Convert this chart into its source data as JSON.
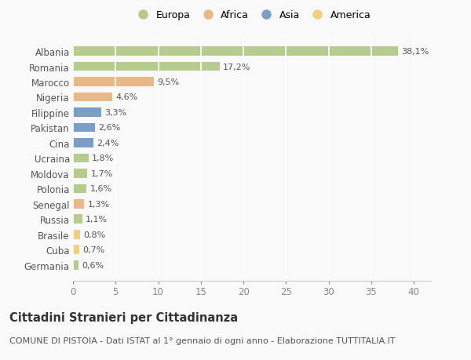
{
  "countries": [
    "Albania",
    "Romania",
    "Marocco",
    "Nigeria",
    "Filippine",
    "Pakistan",
    "Cina",
    "Ucraina",
    "Moldova",
    "Polonia",
    "Senegal",
    "Russia",
    "Brasile",
    "Cuba",
    "Germania"
  ],
  "values": [
    38.1,
    17.2,
    9.5,
    4.6,
    3.3,
    2.6,
    2.4,
    1.8,
    1.7,
    1.6,
    1.3,
    1.1,
    0.8,
    0.7,
    0.6
  ],
  "labels": [
    "38,1%",
    "17,2%",
    "9,5%",
    "4,6%",
    "3,3%",
    "2,6%",
    "2,4%",
    "1,8%",
    "1,7%",
    "1,6%",
    "1,3%",
    "1,1%",
    "0,8%",
    "0,7%",
    "0,6%"
  ],
  "colors": [
    "#b5cc8e",
    "#b5cc8e",
    "#e8b88a",
    "#e8b88a",
    "#7b9ec9",
    "#7b9ec9",
    "#7b9ec9",
    "#b5cc8e",
    "#b5cc8e",
    "#b5cc8e",
    "#e8b88a",
    "#b5cc8e",
    "#f0d080",
    "#f0d080",
    "#b5cc8e"
  ],
  "legend_labels": [
    "Europa",
    "Africa",
    "Asia",
    "America"
  ],
  "legend_colors": [
    "#b5cc8e",
    "#e8b88a",
    "#7b9ec9",
    "#f0d080"
  ],
  "title": "Cittadini Stranieri per Cittadinanza",
  "subtitle": "COMUNE DI PISTOIA - Dati ISTAT al 1° gennaio di ogni anno - Elaborazione TUTTITALIA.IT",
  "xlim": [
    0,
    42
  ],
  "xticks": [
    0,
    5,
    10,
    15,
    20,
    25,
    30,
    35,
    40
  ],
  "background_color": "#f9f9f9",
  "grid_color": "#ffffff",
  "bar_height": 0.6,
  "title_fontsize": 10.5,
  "subtitle_fontsize": 8,
  "tick_fontsize": 8.5,
  "label_fontsize": 8,
  "legend_fontsize": 9
}
